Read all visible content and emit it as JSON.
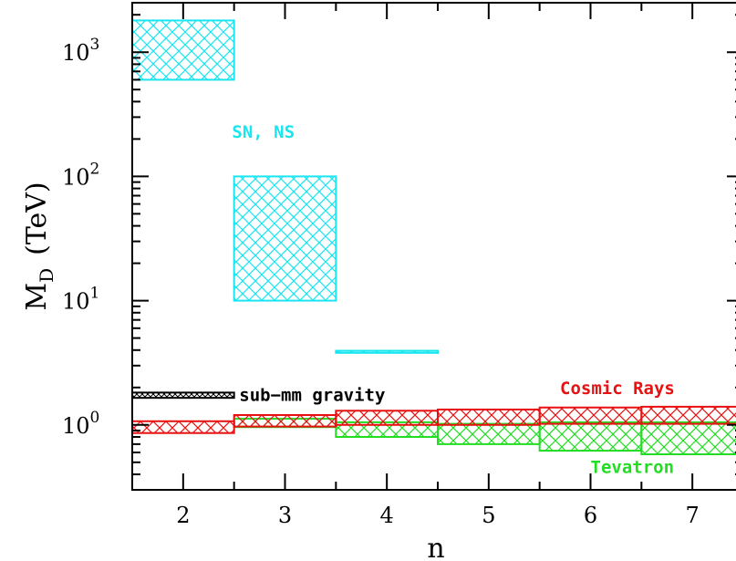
{
  "chart_data": {
    "type": "bar",
    "title": "",
    "xlabel": "n",
    "ylabel_main": "M",
    "ylabel_sub": "D",
    "ylabel_unit": "(TeV)",
    "xlim": [
      1.5,
      7.5
    ],
    "ylim": [
      0.3,
      2500
    ],
    "yscale": "log",
    "x_ticks": [
      2,
      3,
      4,
      5,
      6,
      7
    ],
    "y_ticks": [
      {
        "value": 1,
        "base": "10",
        "exp": "0"
      },
      {
        "value": 10,
        "base": "10",
        "exp": "1"
      },
      {
        "value": 100,
        "base": "10",
        "exp": "2"
      },
      {
        "value": 1000,
        "base": "10",
        "exp": "3"
      }
    ],
    "colors": {
      "cyan": "#19e6f0",
      "red": "#e81010",
      "green": "#22dd22",
      "black": "#000000"
    },
    "series": [
      {
        "name": "SN, NS",
        "color": "#19e6f0",
        "pattern": "crosshatch",
        "boxes": [
          {
            "x0": 1.5,
            "x1": 2.5,
            "lo": 600,
            "hi": 1800
          },
          {
            "x0": 2.5,
            "x1": 3.5,
            "lo": 10,
            "hi": 100
          },
          {
            "x0": 3.5,
            "x1": 4.5,
            "lo": 3.8,
            "hi": 3.95
          }
        ]
      },
      {
        "name": "sub−mm gravity",
        "color": "#000000",
        "pattern": "dense",
        "boxes": [
          {
            "x0": 1.5,
            "x1": 2.5,
            "lo": 1.65,
            "hi": 1.82
          }
        ]
      },
      {
        "name": "Cosmic Rays",
        "color": "#e81010",
        "pattern": "crosshatch",
        "boxes": [
          {
            "x0": 1.5,
            "x1": 2.5,
            "lo": 0.86,
            "hi": 1.07
          },
          {
            "x0": 2.5,
            "x1": 3.5,
            "lo": 0.97,
            "hi": 1.2
          },
          {
            "x0": 3.5,
            "x1": 4.5,
            "lo": 1.0,
            "hi": 1.3
          },
          {
            "x0": 4.5,
            "x1": 5.5,
            "lo": 1.0,
            "hi": 1.33
          },
          {
            "x0": 5.5,
            "x1": 6.5,
            "lo": 1.02,
            "hi": 1.38
          },
          {
            "x0": 6.5,
            "x1": 7.5,
            "lo": 1.02,
            "hi": 1.4
          }
        ]
      },
      {
        "name": "Tevatron",
        "color": "#22dd22",
        "pattern": "crosshatch",
        "boxes": [
          {
            "x0": 2.5,
            "x1": 3.5,
            "lo": 0.96,
            "hi": 1.12
          },
          {
            "x0": 3.5,
            "x1": 4.5,
            "lo": 0.8,
            "hi": 1.05
          },
          {
            "x0": 4.5,
            "x1": 5.5,
            "lo": 0.7,
            "hi": 1.02
          },
          {
            "x0": 5.5,
            "x1": 6.5,
            "lo": 0.62,
            "hi": 1.05
          },
          {
            "x0": 6.5,
            "x1": 7.5,
            "lo": 0.58,
            "hi": 1.05
          }
        ]
      }
    ],
    "annotations": [
      {
        "text": "SN, NS",
        "x": 2.48,
        "y": 230,
        "color": "#19e6f0"
      },
      {
        "text": "sub−mm gravity",
        "x": 2.55,
        "y": 1.75,
        "color": "#000000"
      },
      {
        "text": "Cosmic Rays",
        "x": 5.7,
        "y": 2.0,
        "color": "#e81010"
      },
      {
        "text": "Tevatron",
        "x": 6.0,
        "y": 0.46,
        "color": "#22dd22"
      }
    ]
  }
}
